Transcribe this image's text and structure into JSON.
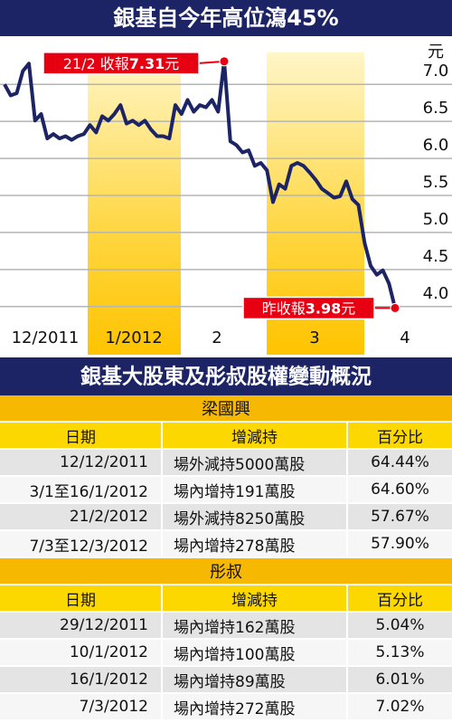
{
  "chart_data": {
    "type": "line",
    "title": "銀基自今年高位瀉45%",
    "y_unit": "元",
    "x_labels": [
      "12/2011",
      "1/2012",
      "2",
      "3",
      "4"
    ],
    "values": [
      7.0,
      6.85,
      6.88,
      7.18,
      7.28,
      6.51,
      6.6,
      6.27,
      6.33,
      6.27,
      6.3,
      6.25,
      6.3,
      6.33,
      6.45,
      6.35,
      6.57,
      6.51,
      6.6,
      6.72,
      6.47,
      6.51,
      6.45,
      6.51,
      6.39,
      6.3,
      6.3,
      6.27,
      6.72,
      6.6,
      6.79,
      6.63,
      6.72,
      6.69,
      6.79,
      6.63,
      7.31,
      6.23,
      6.18,
      6.08,
      6.11,
      5.9,
      5.94,
      5.84,
      5.41,
      5.65,
      5.59,
      5.9,
      5.94,
      5.9,
      5.81,
      5.71,
      5.59,
      5.53,
      5.47,
      5.49,
      5.69,
      5.45,
      5.37,
      4.86,
      4.55,
      4.43,
      4.49,
      4.31,
      3.98
    ],
    "color": "#1c2466",
    "ylim": [
      3.35,
      7.65
    ],
    "yticks": [
      {
        "value": 4,
        "label": "4.0"
      },
      4.5,
      {
        "value": 5,
        "label": "5.0"
      },
      5.5,
      {
        "value": 6,
        "label": "6.0"
      },
      6.5,
      {
        "value": 7,
        "label": "7.0"
      }
    ],
    "grid": true,
    "annotations": [
      {
        "date": "21/2",
        "text": "收報",
        "value": 7.31,
        "unit": "元"
      },
      {
        "text": "昨收報",
        "value": 3.98,
        "unit": "元"
      }
    ]
  },
  "table": {
    "title": "銀基大股東及彤叔股權變動概況",
    "sections": [
      {
        "name": "梁國興",
        "columns": [
          "日期",
          "增減持",
          "百分比"
        ],
        "rows": [
          [
            "12/12/2011",
            "場外減持5000萬股",
            "64.44%"
          ],
          [
            "3/1至16/1/2012",
            "場內增持191萬股",
            "64.60%"
          ],
          [
            "21/2/2012",
            "場外減持8250萬股",
            "57.67%"
          ],
          [
            "7/3至12/3/2012",
            "場內增持278萬股",
            "57.90%"
          ]
        ]
      },
      {
        "name": "彤叔",
        "columns": [
          "日期",
          "增減持",
          "百分比"
        ],
        "rows": [
          [
            "29/12/2011",
            "場內增持162萬股",
            "5.04%"
          ],
          [
            "10/1/2012",
            "場內增持100萬股",
            "5.13%"
          ],
          [
            "16/1/2012",
            "場內增持89萬股",
            "6.01%"
          ],
          [
            "7/3/2012",
            "場內增持272萬股",
            "7.02%"
          ]
        ]
      }
    ]
  }
}
